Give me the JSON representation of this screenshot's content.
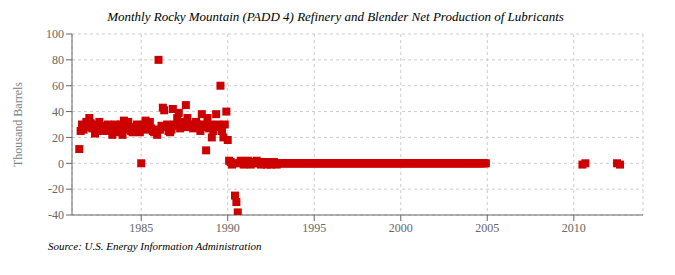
{
  "chart_data": {
    "type": "scatter",
    "title": "Monthly Rocky Mountain (PADD 4) Refinery and Blender Net Production of Lubricants",
    "ylabel": "Thousand Barrels",
    "annotations": [
      "Source: U.S. Energy Information Administration"
    ],
    "color": "#cc0000",
    "marker": "square",
    "grid": true,
    "xlim": [
      1981.0,
      2014.0
    ],
    "ylim": [
      -40,
      100
    ],
    "xticks": [
      1985,
      1990,
      1995,
      2000,
      2005,
      2010
    ],
    "yticks": [
      -40,
      -20,
      0,
      20,
      40,
      60,
      80,
      100
    ],
    "x": [
      1981.42,
      1981.5,
      1981.58,
      1981.67,
      1981.75,
      1981.83,
      1981.92,
      1982.0,
      1982.08,
      1982.17,
      1982.25,
      1982.33,
      1982.42,
      1982.5,
      1982.58,
      1982.67,
      1982.75,
      1982.83,
      1982.92,
      1983.0,
      1983.08,
      1983.17,
      1983.25,
      1983.33,
      1983.42,
      1983.5,
      1983.58,
      1983.67,
      1983.75,
      1983.83,
      1983.92,
      1984.0,
      1984.08,
      1984.17,
      1984.25,
      1984.33,
      1984.42,
      1984.5,
      1984.58,
      1984.67,
      1984.75,
      1984.83,
      1984.92,
      1985.0,
      1985.08,
      1985.17,
      1985.25,
      1985.33,
      1985.42,
      1985.5,
      1985.58,
      1985.67,
      1985.75,
      1985.83,
      1985.92,
      1986.0,
      1986.08,
      1986.17,
      1986.25,
      1986.33,
      1986.42,
      1986.5,
      1986.58,
      1986.67,
      1986.75,
      1986.83,
      1986.92,
      1987.0,
      1987.08,
      1987.17,
      1987.25,
      1987.33,
      1987.42,
      1987.5,
      1987.58,
      1987.67,
      1987.75,
      1987.83,
      1987.92,
      1988.0,
      1988.08,
      1988.17,
      1988.25,
      1988.33,
      1988.42,
      1988.5,
      1988.58,
      1988.67,
      1988.75,
      1988.83,
      1988.92,
      1989.0,
      1989.08,
      1989.17,
      1989.25,
      1989.33,
      1989.42,
      1989.5,
      1989.58,
      1989.67,
      1989.75,
      1989.83,
      1989.92,
      1990.0,
      1990.08,
      1990.17,
      1990.25,
      1990.33,
      1990.42,
      1990.5,
      1990.58,
      1990.67,
      1990.75,
      1990.83,
      1990.92,
      1991.0,
      1991.08,
      1991.17,
      1991.25,
      1991.33,
      1991.42,
      1991.5,
      1991.58,
      1991.67,
      1991.75,
      1991.83,
      1991.92,
      1992.0,
      1992.08,
      1992.17,
      1992.25,
      1992.33,
      1992.42,
      1992.5,
      1992.58,
      1992.67,
      1992.75,
      1992.83,
      1992.92,
      1993.0,
      1993.08,
      1993.17,
      1993.25,
      1993.33,
      1993.42,
      1993.5,
      1993.58,
      1993.67,
      1993.75,
      1993.83,
      1993.92,
      1994.0,
      1994.08,
      1994.17,
      1994.25,
      1994.33,
      1994.42,
      1994.5,
      1994.58,
      1994.67,
      1994.75,
      1994.83,
      1994.92,
      1995.0,
      1995.08,
      1995.17,
      1995.25,
      1995.33,
      1995.42,
      1995.5,
      1995.58,
      1995.67,
      1995.75,
      1995.83,
      1995.92,
      1996.0,
      1996.08,
      1996.17,
      1996.25,
      1996.33,
      1996.42,
      1996.5,
      1996.58,
      1996.67,
      1996.75,
      1996.83,
      1996.92,
      1997.0,
      1997.08,
      1997.17,
      1997.25,
      1997.33,
      1997.42,
      1997.5,
      1997.58,
      1997.67,
      1997.75,
      1997.83,
      1997.92,
      1998.0,
      1998.08,
      1998.17,
      1998.25,
      1998.33,
      1998.42,
      1998.5,
      1998.58,
      1998.67,
      1998.75,
      1998.83,
      1998.92,
      1999.0,
      1999.08,
      1999.17,
      1999.25,
      1999.33,
      1999.42,
      1999.5,
      1999.58,
      1999.67,
      1999.75,
      1999.83,
      1999.92,
      2000.0,
      2000.08,
      2000.17,
      2000.25,
      2000.33,
      2000.42,
      2000.5,
      2000.58,
      2000.67,
      2000.75,
      2000.83,
      2000.92,
      2001.0,
      2001.08,
      2001.17,
      2001.25,
      2001.33,
      2001.42,
      2001.5,
      2001.58,
      2001.67,
      2001.75,
      2001.83,
      2001.92,
      2002.0,
      2002.08,
      2002.17,
      2002.25,
      2002.33,
      2002.42,
      2002.5,
      2002.58,
      2002.67,
      2002.75,
      2002.83,
      2002.92,
      2003.0,
      2003.08,
      2003.17,
      2003.25,
      2003.33,
      2003.42,
      2003.5,
      2003.58,
      2003.67,
      2003.75,
      2003.83,
      2003.92,
      2004.0,
      2004.08,
      2004.17,
      2004.25,
      2004.33,
      2004.42,
      2004.5,
      2004.58,
      2004.67,
      2004.75,
      2004.83,
      2004.92,
      2010.5,
      2010.67,
      2012.5,
      2012.67
    ],
    "values": [
      11,
      25,
      30,
      26,
      29,
      32,
      28,
      35,
      31,
      27,
      28,
      23,
      30,
      25,
      32,
      26,
      29,
      28,
      25,
      26,
      30,
      26,
      28,
      22,
      27,
      30,
      25,
      24,
      28,
      30,
      22,
      33,
      26,
      29,
      32,
      27,
      25,
      24,
      26,
      28,
      30,
      27,
      24,
      0,
      28,
      30,
      33,
      26,
      29,
      32,
      27,
      25,
      24,
      26,
      22,
      80,
      26,
      29,
      43,
      41,
      28,
      30,
      25,
      24,
      26,
      42,
      30,
      29,
      35,
      39,
      27,
      30,
      32,
      28,
      45,
      35,
      30,
      28,
      30,
      27,
      28,
      32,
      30,
      28,
      25,
      38,
      30,
      28,
      10,
      35,
      27,
      30,
      20,
      25,
      28,
      38,
      30,
      28,
      60,
      25,
      20,
      30,
      40,
      18,
      2,
      1,
      -1,
      0,
      -25,
      -30,
      -38,
      0,
      2,
      1,
      -1,
      0,
      1,
      2,
      0,
      -1,
      1,
      0,
      1,
      2,
      1,
      0,
      -1,
      0,
      1,
      0,
      -1,
      1,
      0,
      -1,
      0,
      1,
      0,
      -1,
      0,
      0,
      0,
      0,
      0,
      0,
      0,
      0,
      0,
      0,
      0,
      0,
      0,
      0,
      0,
      0,
      0,
      0,
      0,
      0,
      0,
      0,
      0,
      0,
      0,
      0,
      0,
      0,
      0,
      0,
      0,
      0,
      0,
      0,
      0,
      0,
      0,
      0,
      0,
      0,
      0,
      0,
      0,
      0,
      0,
      0,
      0,
      0,
      0,
      0,
      0,
      0,
      0,
      0,
      0,
      0,
      0,
      0,
      0,
      0,
      0,
      0,
      0,
      0,
      0,
      0,
      0,
      0,
      0,
      0,
      0,
      0,
      0,
      0,
      0,
      0,
      0,
      0,
      0,
      0,
      0,
      0,
      0,
      0,
      0,
      0,
      0,
      0,
      0,
      0,
      0,
      0,
      0,
      0,
      0,
      0,
      0,
      0,
      0,
      0,
      0,
      0,
      0,
      0,
      0,
      0,
      0,
      0,
      0,
      0,
      0,
      0,
      0,
      0,
      0,
      0,
      0,
      0,
      0,
      0,
      0,
      0,
      0,
      0,
      0,
      0,
      0,
      0,
      0,
      0,
      0,
      0,
      0,
      0,
      0,
      0,
      0,
      0,
      0,
      0,
      0,
      0,
      0,
      0,
      0,
      -1,
      0,
      0,
      -1
    ]
  }
}
